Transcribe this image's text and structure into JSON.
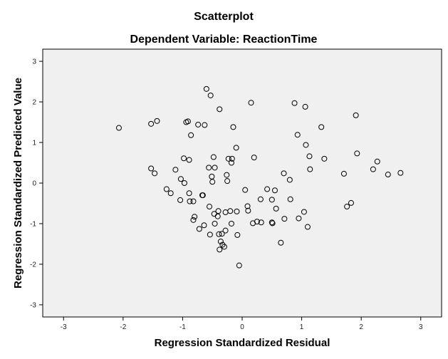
{
  "chart_data": {
    "type": "scatter",
    "title": "Scatterplot",
    "subtitle": "Dependent Variable: ReactionTime",
    "xlabel": "Regression Standardized Residual",
    "ylabel": "Regression Standardized Predicted Value",
    "xlim": [
      -3.35,
      3.35
    ],
    "ylim": [
      -3.3,
      3.3
    ],
    "x_ticks": [
      -3,
      -2,
      -1,
      0,
      1,
      2,
      3
    ],
    "y_ticks": [
      3,
      2,
      1,
      0,
      -1,
      -2,
      -3
    ],
    "x_tick_labels": [
      "-3",
      "-2",
      "-1",
      "0",
      "1",
      "2",
      "3"
    ],
    "y_tick_labels": [
      "3",
      "2",
      "1",
      "0",
      "-1",
      "-2",
      "-3"
    ],
    "grid": false,
    "legend": "none",
    "colors": {
      "plot_background": "#f0f0f0",
      "marker_stroke": "#000000",
      "frame": "#000000"
    },
    "points": [
      {
        "x": -2.07,
        "y": 1.36
      },
      {
        "x": -1.53,
        "y": 1.46
      },
      {
        "x": -1.43,
        "y": 1.53
      },
      {
        "x": -1.53,
        "y": 0.36
      },
      {
        "x": -1.47,
        "y": 0.24
      },
      {
        "x": -1.27,
        "y": -0.15
      },
      {
        "x": -1.2,
        "y": -0.25
      },
      {
        "x": -1.12,
        "y": 0.33
      },
      {
        "x": -1.04,
        "y": -0.42
      },
      {
        "x": -1.03,
        "y": 0.1
      },
      {
        "x": -0.98,
        "y": 0.61
      },
      {
        "x": -0.97,
        "y": 0.0
      },
      {
        "x": -0.94,
        "y": 1.5
      },
      {
        "x": -0.91,
        "y": 1.52
      },
      {
        "x": -0.89,
        "y": 0.57
      },
      {
        "x": -0.88,
        "y": -0.45
      },
      {
        "x": -0.89,
        "y": -0.25
      },
      {
        "x": -0.86,
        "y": 1.18
      },
      {
        "x": -0.82,
        "y": -0.45
      },
      {
        "x": -0.82,
        "y": -0.91
      },
      {
        "x": -0.8,
        "y": -0.83
      },
      {
        "x": -0.74,
        "y": 1.44
      },
      {
        "x": -0.72,
        "y": -1.13
      },
      {
        "x": -0.67,
        "y": -0.3
      },
      {
        "x": -0.66,
        "y": -0.3
      },
      {
        "x": -0.64,
        "y": -1.04
      },
      {
        "x": -0.63,
        "y": 1.43
      },
      {
        "x": -0.6,
        "y": 2.32
      },
      {
        "x": -0.56,
        "y": 0.38
      },
      {
        "x": -0.55,
        "y": -0.58
      },
      {
        "x": -0.54,
        "y": -1.27
      },
      {
        "x": -0.53,
        "y": 2.16
      },
      {
        "x": -0.51,
        "y": 0.16
      },
      {
        "x": -0.5,
        "y": 0.03
      },
      {
        "x": -0.48,
        "y": 0.64
      },
      {
        "x": -0.47,
        "y": -0.76
      },
      {
        "x": -0.46,
        "y": -1.0
      },
      {
        "x": -0.46,
        "y": 0.38
      },
      {
        "x": -0.41,
        "y": -0.82
      },
      {
        "x": -0.4,
        "y": -0.69
      },
      {
        "x": -0.39,
        "y": -1.26
      },
      {
        "x": -0.38,
        "y": 1.82
      },
      {
        "x": -0.38,
        "y": -1.64
      },
      {
        "x": -0.36,
        "y": -1.44
      },
      {
        "x": -0.34,
        "y": -1.25
      },
      {
        "x": -0.33,
        "y": -1.52
      },
      {
        "x": -0.3,
        "y": -1.57
      },
      {
        "x": -0.28,
        "y": -1.17
      },
      {
        "x": -0.28,
        "y": -0.72
      },
      {
        "x": -0.26,
        "y": 0.2
      },
      {
        "x": -0.25,
        "y": 0.05
      },
      {
        "x": -0.23,
        "y": 0.6
      },
      {
        "x": -0.2,
        "y": -0.69
      },
      {
        "x": -0.18,
        "y": 0.5
      },
      {
        "x": -0.18,
        "y": -1.0
      },
      {
        "x": -0.17,
        "y": 0.6
      },
      {
        "x": -0.15,
        "y": 1.38
      },
      {
        "x": -0.1,
        "y": 0.87
      },
      {
        "x": -0.09,
        "y": -0.7
      },
      {
        "x": -0.08,
        "y": -1.28
      },
      {
        "x": -0.05,
        "y": -2.03
      },
      {
        "x": 0.05,
        "y": -0.17
      },
      {
        "x": 0.09,
        "y": -0.57
      },
      {
        "x": 0.1,
        "y": -0.68
      },
      {
        "x": 0.15,
        "y": 1.98
      },
      {
        "x": 0.18,
        "y": -0.99
      },
      {
        "x": 0.2,
        "y": 0.63
      },
      {
        "x": 0.25,
        "y": -0.95
      },
      {
        "x": 0.31,
        "y": -0.4
      },
      {
        "x": 0.32,
        "y": -0.97
      },
      {
        "x": 0.42,
        "y": -0.15
      },
      {
        "x": 0.5,
        "y": -0.97
      },
      {
        "x": 0.5,
        "y": -0.41
      },
      {
        "x": 0.51,
        "y": -0.99
      },
      {
        "x": 0.55,
        "y": -0.18
      },
      {
        "x": 0.57,
        "y": -0.63
      },
      {
        "x": 0.65,
        "y": -1.47
      },
      {
        "x": 0.7,
        "y": 0.24
      },
      {
        "x": 0.71,
        "y": -0.88
      },
      {
        "x": 0.8,
        "y": 0.08
      },
      {
        "x": 0.81,
        "y": -0.4
      },
      {
        "x": 0.88,
        "y": 1.97
      },
      {
        "x": 0.93,
        "y": 1.19
      },
      {
        "x": 0.95,
        "y": -0.87
      },
      {
        "x": 1.04,
        "y": -0.71
      },
      {
        "x": 1.06,
        "y": 1.88
      },
      {
        "x": 1.07,
        "y": 0.94
      },
      {
        "x": 1.1,
        "y": -1.08
      },
      {
        "x": 1.13,
        "y": 0.66
      },
      {
        "x": 1.14,
        "y": 0.34
      },
      {
        "x": 1.33,
        "y": 1.38
      },
      {
        "x": 1.38,
        "y": 0.6
      },
      {
        "x": 1.71,
        "y": 0.23
      },
      {
        "x": 1.76,
        "y": -0.58
      },
      {
        "x": 1.83,
        "y": -0.49
      },
      {
        "x": 1.91,
        "y": 1.67
      },
      {
        "x": 1.93,
        "y": 0.73
      },
      {
        "x": 2.2,
        "y": 0.34
      },
      {
        "x": 2.27,
        "y": 0.53
      },
      {
        "x": 2.45,
        "y": 0.21
      },
      {
        "x": 2.66,
        "y": 0.25
      }
    ]
  }
}
